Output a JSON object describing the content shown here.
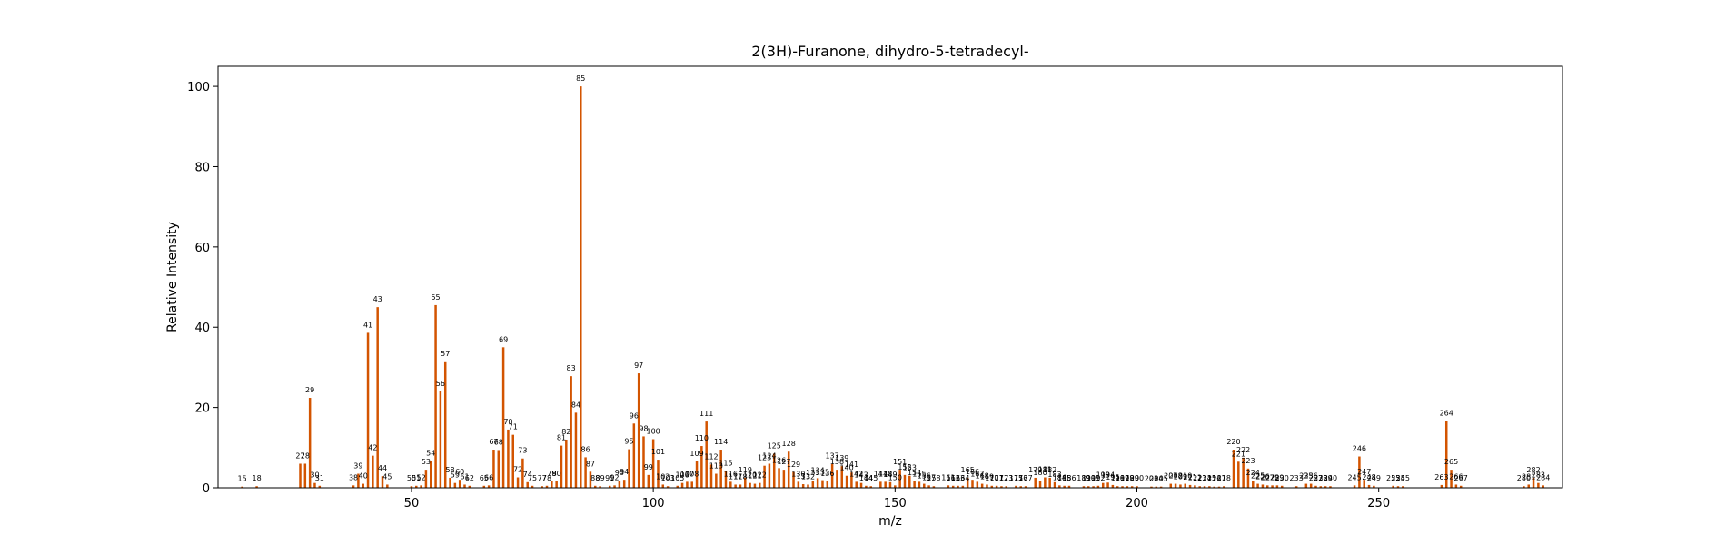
{
  "chart_data": {
    "type": "bar",
    "title": "2(3H)-Furanone, dihydro-5-tetradecyl-",
    "xlabel": "m/z",
    "ylabel": "Relative Intensity",
    "xlim": [
      10,
      288
    ],
    "ylim": [
      0,
      105
    ],
    "xticks": [
      50,
      100,
      150,
      200,
      250
    ],
    "yticks": [
      0,
      20,
      40,
      60,
      80,
      100
    ],
    "grid": false,
    "bar_color": "#d35400",
    "peaks": [
      {
        "x": 15,
        "y": 0.3
      },
      {
        "x": 18,
        "y": 0.4
      },
      {
        "x": 27,
        "y": 6
      },
      {
        "x": 28,
        "y": 6
      },
      {
        "x": 29,
        "y": 22.4
      },
      {
        "x": 30,
        "y": 1.2
      },
      {
        "x": 31,
        "y": 0.5
      },
      {
        "x": 38,
        "y": 0.6
      },
      {
        "x": 39,
        "y": 3.5
      },
      {
        "x": 40,
        "y": 1.0
      },
      {
        "x": 41,
        "y": 38.6
      },
      {
        "x": 42,
        "y": 8.0
      },
      {
        "x": 43,
        "y": 45.0
      },
      {
        "x": 44,
        "y": 2.9
      },
      {
        "x": 45,
        "y": 0.8
      },
      {
        "x": 50,
        "y": 0.4
      },
      {
        "x": 51,
        "y": 0.5
      },
      {
        "x": 52,
        "y": 0.6
      },
      {
        "x": 53,
        "y": 4.5
      },
      {
        "x": 54,
        "y": 6.7
      },
      {
        "x": 55,
        "y": 45.5
      },
      {
        "x": 56,
        "y": 24.0
      },
      {
        "x": 57,
        "y": 31.5
      },
      {
        "x": 58,
        "y": 2.5
      },
      {
        "x": 59,
        "y": 1.2
      },
      {
        "x": 60,
        "y": 2.0
      },
      {
        "x": 61,
        "y": 0.8
      },
      {
        "x": 62,
        "y": 0.5
      },
      {
        "x": 65,
        "y": 0.5
      },
      {
        "x": 66,
        "y": 0.6
      },
      {
        "x": 67,
        "y": 9.5
      },
      {
        "x": 68,
        "y": 9.4
      },
      {
        "x": 69,
        "y": 35.0
      },
      {
        "x": 70,
        "y": 14.5
      },
      {
        "x": 71,
        "y": 13.2
      },
      {
        "x": 72,
        "y": 2.6
      },
      {
        "x": 73,
        "y": 7.3
      },
      {
        "x": 74,
        "y": 1.4
      },
      {
        "x": 75,
        "y": 0.5
      },
      {
        "x": 77,
        "y": 0.4
      },
      {
        "x": 78,
        "y": 0.5
      },
      {
        "x": 79,
        "y": 1.6
      },
      {
        "x": 80,
        "y": 1.6
      },
      {
        "x": 81,
        "y": 10.5
      },
      {
        "x": 82,
        "y": 12.0
      },
      {
        "x": 83,
        "y": 27.8
      },
      {
        "x": 84,
        "y": 18.7
      },
      {
        "x": 85,
        "y": 100
      },
      {
        "x": 86,
        "y": 7.6
      },
      {
        "x": 87,
        "y": 4.0
      },
      {
        "x": 88,
        "y": 0.5
      },
      {
        "x": 89,
        "y": 0.4
      },
      {
        "x": 91,
        "y": 0.5
      },
      {
        "x": 92,
        "y": 0.6
      },
      {
        "x": 93,
        "y": 1.8
      },
      {
        "x": 94,
        "y": 2.0
      },
      {
        "x": 95,
        "y": 9.6
      },
      {
        "x": 96,
        "y": 16.0
      },
      {
        "x": 97,
        "y": 28.5
      },
      {
        "x": 98,
        "y": 12.8
      },
      {
        "x": 99,
        "y": 3.2
      },
      {
        "x": 100,
        "y": 12.1
      },
      {
        "x": 101,
        "y": 7.0
      },
      {
        "x": 102,
        "y": 0.8
      },
      {
        "x": 103,
        "y": 0.4
      },
      {
        "x": 105,
        "y": 0.5
      },
      {
        "x": 106,
        "y": 1.2
      },
      {
        "x": 107,
        "y": 1.5
      },
      {
        "x": 108,
        "y": 1.5
      },
      {
        "x": 109,
        "y": 6.6
      },
      {
        "x": 110,
        "y": 10.4
      },
      {
        "x": 111,
        "y": 16.5
      },
      {
        "x": 112,
        "y": 5.8
      },
      {
        "x": 113,
        "y": 3.5
      },
      {
        "x": 114,
        "y": 9.5
      },
      {
        "x": 115,
        "y": 4.2
      },
      {
        "x": 116,
        "y": 1.5
      },
      {
        "x": 117,
        "y": 0.8
      },
      {
        "x": 118,
        "y": 0.8
      },
      {
        "x": 119,
        "y": 2.5
      },
      {
        "x": 120,
        "y": 1.2
      },
      {
        "x": 121,
        "y": 1.0
      },
      {
        "x": 122,
        "y": 1.2
      },
      {
        "x": 123,
        "y": 5.5
      },
      {
        "x": 124,
        "y": 6.0
      },
      {
        "x": 125,
        "y": 8.5
      },
      {
        "x": 126,
        "y": 4.9
      },
      {
        "x": 127,
        "y": 4.5
      },
      {
        "x": 128,
        "y": 9.0
      },
      {
        "x": 129,
        "y": 3.9
      },
      {
        "x": 130,
        "y": 1.5
      },
      {
        "x": 131,
        "y": 0.9
      },
      {
        "x": 132,
        "y": 0.8
      },
      {
        "x": 133,
        "y": 1.8
      },
      {
        "x": 134,
        "y": 2.4
      },
      {
        "x": 135,
        "y": 1.9
      },
      {
        "x": 136,
        "y": 1.6
      },
      {
        "x": 137,
        "y": 6.0
      },
      {
        "x": 138,
        "y": 4.5
      },
      {
        "x": 139,
        "y": 5.4
      },
      {
        "x": 140,
        "y": 3.0
      },
      {
        "x": 141,
        "y": 3.8
      },
      {
        "x": 142,
        "y": 1.5
      },
      {
        "x": 143,
        "y": 1.2
      },
      {
        "x": 144,
        "y": 0.5
      },
      {
        "x": 145,
        "y": 0.4
      },
      {
        "x": 147,
        "y": 1.5
      },
      {
        "x": 148,
        "y": 1.5
      },
      {
        "x": 149,
        "y": 1.4
      },
      {
        "x": 150,
        "y": 0.6
      },
      {
        "x": 151,
        "y": 4.5
      },
      {
        "x": 152,
        "y": 3.2
      },
      {
        "x": 153,
        "y": 3.0
      },
      {
        "x": 154,
        "y": 1.8
      },
      {
        "x": 155,
        "y": 1.5
      },
      {
        "x": 156,
        "y": 1.0
      },
      {
        "x": 157,
        "y": 0.6
      },
      {
        "x": 158,
        "y": 0.4
      },
      {
        "x": 161,
        "y": 0.6
      },
      {
        "x": 162,
        "y": 0.5
      },
      {
        "x": 163,
        "y": 0.5
      },
      {
        "x": 164,
        "y": 0.5
      },
      {
        "x": 165,
        "y": 2.5
      },
      {
        "x": 166,
        "y": 2.0
      },
      {
        "x": 167,
        "y": 1.5
      },
      {
        "x": 168,
        "y": 1.0
      },
      {
        "x": 169,
        "y": 0.8
      },
      {
        "x": 170,
        "y": 0.5
      },
      {
        "x": 171,
        "y": 0.5
      },
      {
        "x": 172,
        "y": 0.4
      },
      {
        "x": 173,
        "y": 0.4
      },
      {
        "x": 175,
        "y": 0.5
      },
      {
        "x": 176,
        "y": 0.4
      },
      {
        "x": 177,
        "y": 0.4
      },
      {
        "x": 179,
        "y": 2.5
      },
      {
        "x": 180,
        "y": 1.8
      },
      {
        "x": 181,
        "y": 2.6
      },
      {
        "x": 182,
        "y": 2.5
      },
      {
        "x": 183,
        "y": 1.4
      },
      {
        "x": 184,
        "y": 0.6
      },
      {
        "x": 185,
        "y": 0.5
      },
      {
        "x": 186,
        "y": 0.5
      },
      {
        "x": 189,
        "y": 0.4
      },
      {
        "x": 190,
        "y": 0.4
      },
      {
        "x": 191,
        "y": 0.4
      },
      {
        "x": 192,
        "y": 0.5
      },
      {
        "x": 193,
        "y": 1.2
      },
      {
        "x": 194,
        "y": 1.3
      },
      {
        "x": 195,
        "y": 0.7
      },
      {
        "x": 196,
        "y": 0.4
      },
      {
        "x": 197,
        "y": 0.4
      },
      {
        "x": 198,
        "y": 0.4
      },
      {
        "x": 199,
        "y": 0.4
      },
      {
        "x": 200,
        "y": 0.4
      },
      {
        "x": 203,
        "y": 0.3
      },
      {
        "x": 204,
        "y": 0.3
      },
      {
        "x": 205,
        "y": 0.3
      },
      {
        "x": 207,
        "y": 1.0
      },
      {
        "x": 208,
        "y": 1.0
      },
      {
        "x": 209,
        "y": 0.8
      },
      {
        "x": 210,
        "y": 1.0
      },
      {
        "x": 211,
        "y": 0.7
      },
      {
        "x": 212,
        "y": 0.6
      },
      {
        "x": 213,
        "y": 0.4
      },
      {
        "x": 214,
        "y": 0.4
      },
      {
        "x": 215,
        "y": 0.4
      },
      {
        "x": 216,
        "y": 0.3
      },
      {
        "x": 217,
        "y": 0.3
      },
      {
        "x": 218,
        "y": 0.4
      },
      {
        "x": 220,
        "y": 9.5
      },
      {
        "x": 221,
        "y": 6.5
      },
      {
        "x": 222,
        "y": 7.5
      },
      {
        "x": 223,
        "y": 4.8
      },
      {
        "x": 224,
        "y": 1.8
      },
      {
        "x": 225,
        "y": 1.0
      },
      {
        "x": 226,
        "y": 0.8
      },
      {
        "x": 227,
        "y": 0.6
      },
      {
        "x": 228,
        "y": 0.6
      },
      {
        "x": 229,
        "y": 0.6
      },
      {
        "x": 230,
        "y": 0.5
      },
      {
        "x": 233,
        "y": 0.4
      },
      {
        "x": 235,
        "y": 1.0
      },
      {
        "x": 236,
        "y": 1.0
      },
      {
        "x": 237,
        "y": 0.5
      },
      {
        "x": 238,
        "y": 0.4
      },
      {
        "x": 239,
        "y": 0.4
      },
      {
        "x": 240,
        "y": 0.4
      },
      {
        "x": 245,
        "y": 0.6
      },
      {
        "x": 246,
        "y": 7.8
      },
      {
        "x": 247,
        "y": 2.0
      },
      {
        "x": 248,
        "y": 0.7
      },
      {
        "x": 249,
        "y": 0.5
      },
      {
        "x": 253,
        "y": 0.5
      },
      {
        "x": 254,
        "y": 0.4
      },
      {
        "x": 255,
        "y": 0.4
      },
      {
        "x": 263,
        "y": 0.7
      },
      {
        "x": 264,
        "y": 16.6
      },
      {
        "x": 265,
        "y": 4.5
      },
      {
        "x": 266,
        "y": 0.8
      },
      {
        "x": 267,
        "y": 0.5
      },
      {
        "x": 280,
        "y": 0.4
      },
      {
        "x": 281,
        "y": 0.8
      },
      {
        "x": 282,
        "y": 2.5
      },
      {
        "x": 283,
        "y": 1.2
      },
      {
        "x": 284,
        "y": 0.6
      }
    ]
  }
}
